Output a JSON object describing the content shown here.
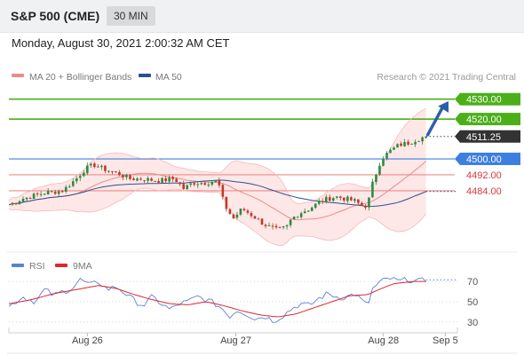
{
  "header": {
    "title": "S&P 500 (CME)",
    "timeframe": "30 MIN",
    "datetime": "Monday, August 30, 2021 2:00:32 AM CET"
  },
  "colors": {
    "up": "#2d8a3e",
    "down": "#c0392b",
    "bollinger": "#ef8a8a",
    "band_fill": "#fde3e3",
    "ma50": "#2c4f8f",
    "resistance": "#4caf1a",
    "support_blue": "#3d7fe0",
    "support_red": "#f08a8a",
    "current": "#333333",
    "rsi": "#5a82d6",
    "rsi_ma": "#e0262d",
    "arrow": "#2c5fa8"
  },
  "chart_data": [
    {
      "type": "candlestick",
      "legend": [
        {
          "label": "MA 20 + Bollinger Bands",
          "color": "#ef8a8a"
        },
        {
          "label": "MA 50",
          "color": "#2c4f8f"
        }
      ],
      "watermark": "Research © 2021 Trading Central",
      "ylim": [
        4455,
        4537
      ],
      "xlim": [
        0,
        100
      ],
      "x_ticks": [
        {
          "x": 17.5,
          "label": "Aug 26"
        },
        {
          "x": 50.6,
          "label": "Aug 27"
        },
        {
          "x": 83.5,
          "label": "Aug 28"
        },
        {
          "x": 97.3,
          "label": "Sep 5"
        }
      ],
      "levels": [
        {
          "value": 4530.0,
          "label": "4530.00",
          "kind": "resistance"
        },
        {
          "value": 4520.0,
          "label": "4520.00",
          "kind": "resistance"
        },
        {
          "value": 4511.25,
          "label": "4511.25",
          "kind": "current"
        },
        {
          "value": 4500.0,
          "label": "4500.00",
          "kind": "support_blue"
        },
        {
          "value": 4492.0,
          "label": "4492.00",
          "kind": "support_red"
        },
        {
          "value": 4484.0,
          "label": "4484.00",
          "kind": "support_red"
        }
      ],
      "price_keypoints": [
        [
          0,
          4477
        ],
        [
          3,
          4480
        ],
        [
          8,
          4483
        ],
        [
          12,
          4484
        ],
        [
          15,
          4490
        ],
        [
          17,
          4495
        ],
        [
          19,
          4497
        ],
        [
          21,
          4495
        ],
        [
          24,
          4493
        ],
        [
          27,
          4490
        ],
        [
          30,
          4490
        ],
        [
          33,
          4489
        ],
        [
          37,
          4490
        ],
        [
          39,
          4485
        ],
        [
          41,
          4488
        ],
        [
          44,
          4488
        ],
        [
          46,
          4489
        ],
        [
          47,
          4486
        ],
        [
          48,
          4477
        ],
        [
          50,
          4470
        ],
        [
          52,
          4475
        ],
        [
          54,
          4472
        ],
        [
          57,
          4467
        ],
        [
          60,
          4464
        ],
        [
          62,
          4466
        ],
        [
          63,
          4470
        ],
        [
          65,
          4473
        ],
        [
          67,
          4475
        ],
        [
          69,
          4478
        ],
        [
          71,
          4480
        ],
        [
          73,
          4481
        ],
        [
          75,
          4480
        ],
        [
          77,
          4479
        ],
        [
          79,
          4476
        ],
        [
          80,
          4477
        ],
        [
          81,
          4487
        ],
        [
          83,
          4500
        ],
        [
          85,
          4504
        ],
        [
          87,
          4507
        ],
        [
          89,
          4508
        ],
        [
          91,
          4510
        ],
        [
          93,
          4511.25
        ]
      ],
      "projection": {
        "from": [
          93,
          4511.25
        ],
        "to": [
          98,
          4529
        ]
      }
    },
    {
      "type": "line",
      "legend": [
        {
          "label": "RSI",
          "color": "#5a82d6"
        },
        {
          "label": "9MA",
          "color": "#e0262d"
        }
      ],
      "ylim": [
        22,
        78
      ],
      "y_ticks": [
        70,
        50,
        30
      ],
      "xlim": [
        0,
        100
      ],
      "rsi_keypoints": [
        [
          0,
          45
        ],
        [
          3,
          55
        ],
        [
          6,
          50
        ],
        [
          8,
          62
        ],
        [
          10,
          56
        ],
        [
          12,
          60
        ],
        [
          14,
          63
        ],
        [
          16,
          72
        ],
        [
          18,
          66
        ],
        [
          20,
          70
        ],
        [
          22,
          62
        ],
        [
          24,
          65
        ],
        [
          26,
          58
        ],
        [
          28,
          51
        ],
        [
          30,
          46
        ],
        [
          32,
          55
        ],
        [
          34,
          48
        ],
        [
          36,
          42
        ],
        [
          38,
          48
        ],
        [
          40,
          50
        ],
        [
          42,
          55
        ],
        [
          44,
          52
        ],
        [
          46,
          48
        ],
        [
          48,
          42
        ],
        [
          49,
          35
        ],
        [
          51,
          42
        ],
        [
          53,
          38
        ],
        [
          55,
          33
        ],
        [
          57,
          36
        ],
        [
          59,
          31
        ],
        [
          61,
          36
        ],
        [
          63,
          43
        ],
        [
          65,
          48
        ],
        [
          67,
          46
        ],
        [
          69,
          53
        ],
        [
          71,
          58
        ],
        [
          73,
          55
        ],
        [
          75,
          54
        ],
        [
          77,
          58
        ],
        [
          79,
          50
        ],
        [
          80,
          45
        ],
        [
          81,
          62
        ],
        [
          83,
          70
        ],
        [
          85,
          73
        ],
        [
          87,
          70
        ],
        [
          89,
          72
        ],
        [
          91,
          70
        ],
        [
          93,
          71
        ]
      ],
      "ma_keypoints": [
        [
          0,
          48
        ],
        [
          5,
          52
        ],
        [
          10,
          58
        ],
        [
          15,
          62
        ],
        [
          20,
          66
        ],
        [
          24,
          63
        ],
        [
          28,
          57
        ],
        [
          32,
          52
        ],
        [
          36,
          48
        ],
        [
          40,
          47
        ],
        [
          44,
          50
        ],
        [
          48,
          46
        ],
        [
          52,
          41
        ],
        [
          56,
          37
        ],
        [
          60,
          35
        ],
        [
          64,
          38
        ],
        [
          68,
          44
        ],
        [
          72,
          50
        ],
        [
          76,
          56
        ],
        [
          80,
          57
        ],
        [
          83,
          63
        ],
        [
          86,
          68
        ],
        [
          90,
          70
        ],
        [
          93,
          70
        ]
      ],
      "last_rsi": 71.5
    }
  ]
}
